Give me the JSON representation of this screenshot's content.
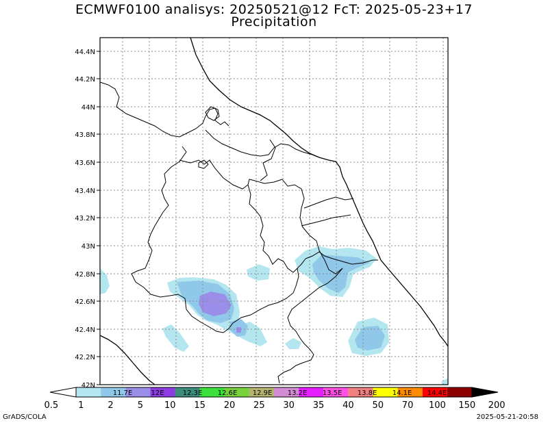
{
  "title_line1": "ECMWF0100 analisys: 20250521@12 FcT: 2025-05-23+17",
  "title_line2": "Precipitation",
  "y_ticks": [
    "44.4N",
    "44.2N",
    "44N",
    "43.8N",
    "43.6N",
    "43.4N",
    "43.2N",
    "43N",
    "42.8N",
    "42.6N",
    "42.4N",
    "42.2N",
    "42N"
  ],
  "x_ticks": [
    "11.7E",
    "12E",
    "12.3E",
    "12.6E",
    "12.9E",
    "13.2E",
    "13.5E",
    "13.8E",
    "14.1E",
    "14.4E"
  ],
  "legend_values": [
    "0.5",
    "1",
    "2",
    "5",
    "10",
    "15",
    "20",
    "25",
    "30",
    "35",
    "40",
    "50",
    "70",
    "100",
    "150",
    "200"
  ],
  "legend_colors": [
    "#b4e6f0",
    "#8fc8e8",
    "#9b8ee8",
    "#8c3ce0",
    "#3c8c7c",
    "#3ce03c",
    "#78d23c",
    "#b4b46e",
    "#d28cd2",
    "#e61eff",
    "#ff50e6",
    "#f08080",
    "#ffff00",
    "#ff8c00",
    "#ff0000",
    "#8c0000"
  ],
  "footer_left": "GrADS/COLA",
  "footer_right": "2025-05-21-20:58"
}
